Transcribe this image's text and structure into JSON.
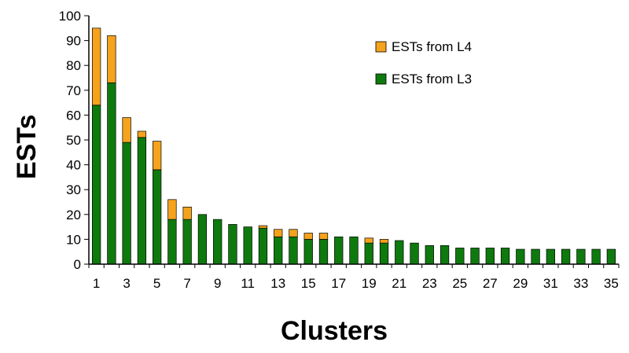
{
  "chart_data": {
    "type": "bar",
    "stacked": true,
    "xlabel": "Clusters",
    "ylabel": "ESTs",
    "ylim": [
      0,
      100
    ],
    "yticks": [
      0,
      10,
      20,
      30,
      40,
      50,
      60,
      70,
      80,
      90,
      100
    ],
    "xticks": [
      "1",
      "3",
      "5",
      "7",
      "9",
      "11",
      "13",
      "15",
      "17",
      "19",
      "21",
      "23",
      "25",
      "27",
      "29",
      "31",
      "33",
      "35"
    ],
    "x": [
      1,
      2,
      3,
      4,
      5,
      6,
      7,
      8,
      9,
      10,
      11,
      12,
      13,
      14,
      15,
      16,
      17,
      18,
      19,
      20,
      21,
      22,
      23,
      24,
      25,
      26,
      27,
      28,
      29,
      30,
      31,
      32,
      33,
      34,
      35
    ],
    "legend_position": "top-right",
    "grid": false,
    "series": [
      {
        "name": "ESTs from L3",
        "color": "#0e7a0e",
        "values": [
          64,
          73,
          49,
          51,
          38,
          18,
          18,
          20,
          18,
          16,
          15,
          14.5,
          11,
          11,
          10,
          10,
          11,
          11,
          8.5,
          8.5,
          9.5,
          8.5,
          7.5,
          7.5,
          6.5,
          6.5,
          6.5,
          6.5,
          6,
          6,
          6,
          6,
          6,
          6,
          6
        ]
      },
      {
        "name": "ESTs from L4",
        "color": "#f5a21c",
        "values": [
          31,
          19,
          10,
          2.5,
          11.5,
          8,
          5,
          0,
          0,
          0,
          0,
          1,
          3,
          3,
          2.5,
          2.5,
          0,
          0,
          2,
          1.5,
          0,
          0,
          0,
          0,
          0,
          0,
          0,
          0,
          0,
          0,
          0,
          0,
          0,
          0,
          0
        ]
      }
    ]
  }
}
